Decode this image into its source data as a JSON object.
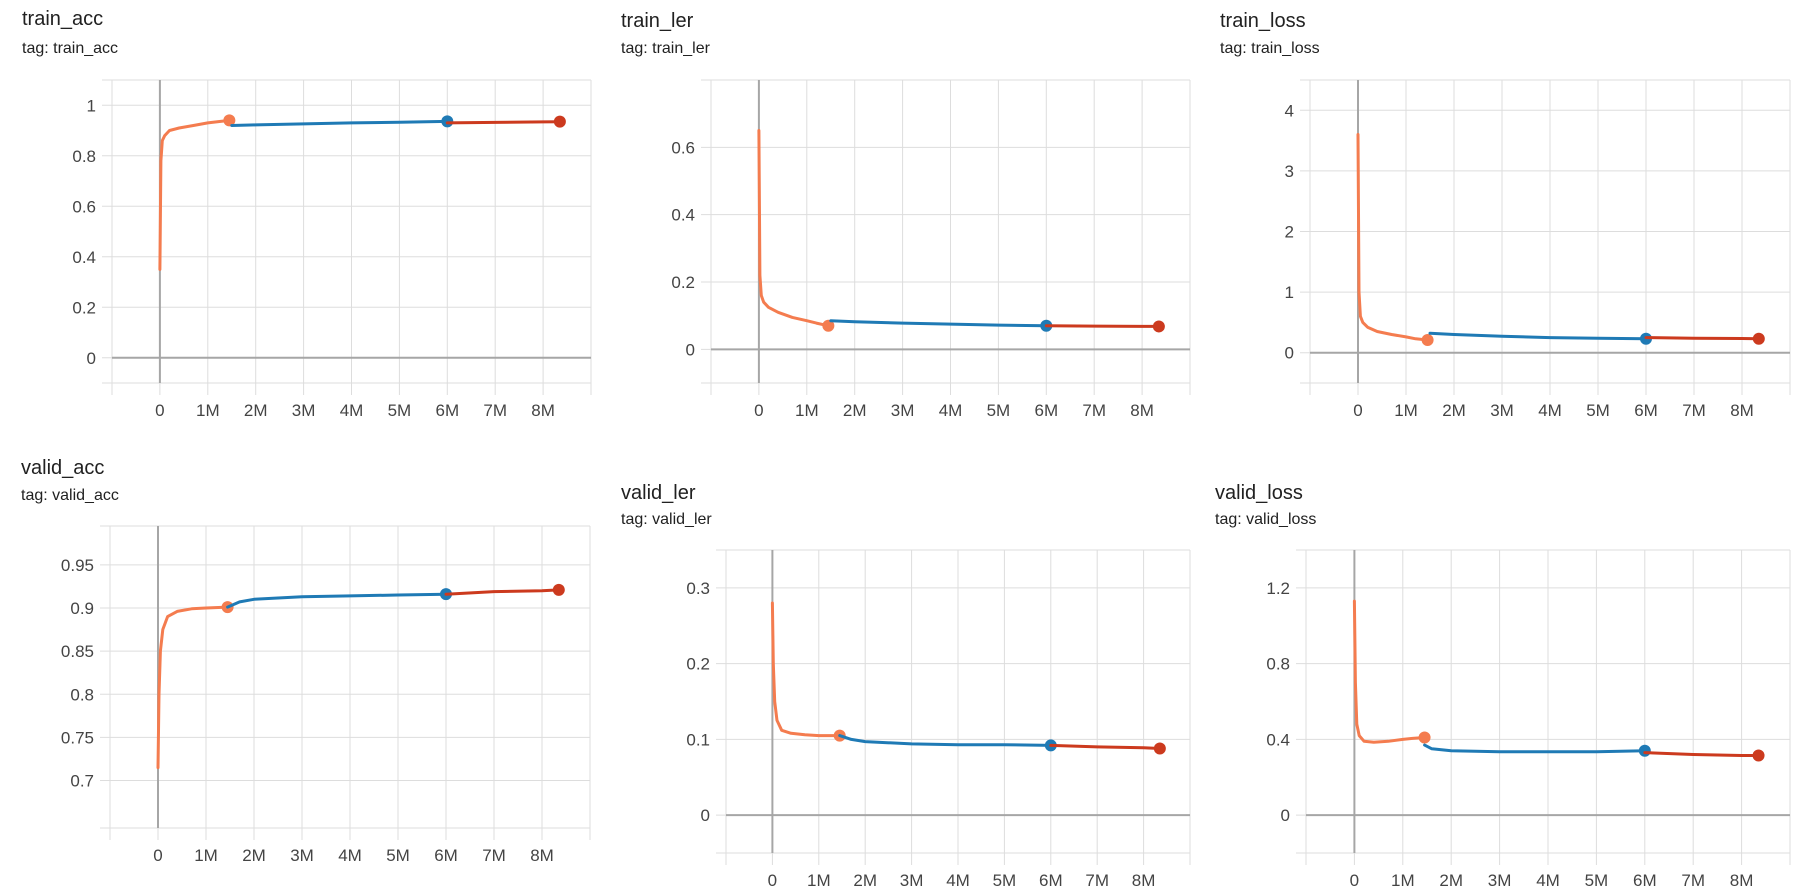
{
  "chart_data": [
    {
      "type": "line",
      "title": "train_acc",
      "tag": "tag: train_acc",
      "xlim": [
        -1000000,
        9000000
      ],
      "ylim": [
        -0.1,
        1.1
      ],
      "xticks": [
        0,
        1000000,
        2000000,
        3000000,
        4000000,
        5000000,
        6000000,
        7000000,
        8000000
      ],
      "xtick_labels": [
        "0",
        "1M",
        "2M",
        "3M",
        "4M",
        "5M",
        "6M",
        "7M",
        "8M"
      ],
      "yticks": [
        0,
        0.2,
        0.4,
        0.6,
        0.8,
        1
      ],
      "ytick_labels": [
        "0",
        "0.2",
        "0.4",
        "0.6",
        "0.8",
        "1"
      ],
      "series": [
        {
          "color": "#f47c4f",
          "x": [
            0,
            20000,
            50000,
            100000,
            200000,
            400000,
            700000,
            1000000,
            1200000,
            1450000
          ],
          "y": [
            0.35,
            0.78,
            0.86,
            0.88,
            0.9,
            0.91,
            0.92,
            0.93,
            0.935,
            0.94
          ]
        },
        {
          "color": "#1f7ab5",
          "x": [
            1500000,
            2000000,
            3000000,
            4000000,
            5000000,
            6000000
          ],
          "y": [
            0.92,
            0.922,
            0.926,
            0.93,
            0.933,
            0.936
          ]
        },
        {
          "color": "#cc3a1e",
          "x": [
            6000000,
            7000000,
            8000000,
            8350000
          ],
          "y": [
            0.93,
            0.932,
            0.934,
            0.935
          ]
        }
      ]
    },
    {
      "type": "line",
      "title": "train_ler",
      "tag": "tag: train_ler",
      "xlim": [
        -1000000,
        9000000
      ],
      "ylim": [
        -0.1,
        0.8
      ],
      "xticks": [
        0,
        1000000,
        2000000,
        3000000,
        4000000,
        5000000,
        6000000,
        7000000,
        8000000
      ],
      "xtick_labels": [
        "0",
        "1M",
        "2M",
        "3M",
        "4M",
        "5M",
        "6M",
        "7M",
        "8M"
      ],
      "yticks": [
        0,
        0.2,
        0.4,
        0.6
      ],
      "ytick_labels": [
        "0",
        "0.2",
        "0.4",
        "0.6"
      ],
      "series": [
        {
          "color": "#f47c4f",
          "x": [
            0,
            20000,
            50000,
            100000,
            200000,
            400000,
            700000,
            1000000,
            1200000,
            1450000
          ],
          "y": [
            0.65,
            0.22,
            0.16,
            0.14,
            0.125,
            0.11,
            0.095,
            0.085,
            0.078,
            0.07
          ]
        },
        {
          "color": "#1f7ab5",
          "x": [
            1500000,
            2000000,
            3000000,
            4000000,
            5000000,
            6000000
          ],
          "y": [
            0.085,
            0.082,
            0.078,
            0.075,
            0.072,
            0.07
          ]
        },
        {
          "color": "#cc3a1e",
          "x": [
            6000000,
            7000000,
            8000000,
            8350000
          ],
          "y": [
            0.07,
            0.069,
            0.068,
            0.068
          ]
        }
      ]
    },
    {
      "type": "line",
      "title": "train_loss",
      "tag": "tag: train_loss",
      "xlim": [
        -1000000,
        9000000
      ],
      "ylim": [
        -0.5,
        4.5
      ],
      "xticks": [
        0,
        1000000,
        2000000,
        3000000,
        4000000,
        5000000,
        6000000,
        7000000,
        8000000
      ],
      "xtick_labels": [
        "0",
        "1M",
        "2M",
        "3M",
        "4M",
        "5M",
        "6M",
        "7M",
        "8M"
      ],
      "yticks": [
        0,
        1,
        2,
        3,
        4
      ],
      "ytick_labels": [
        "0",
        "1",
        "2",
        "3",
        "4"
      ],
      "series": [
        {
          "color": "#f47c4f",
          "x": [
            0,
            20000,
            50000,
            100000,
            200000,
            400000,
            700000,
            1000000,
            1200000,
            1450000
          ],
          "y": [
            3.6,
            1.0,
            0.6,
            0.5,
            0.42,
            0.35,
            0.3,
            0.26,
            0.23,
            0.21
          ]
        },
        {
          "color": "#1f7ab5",
          "x": [
            1500000,
            2000000,
            3000000,
            4000000,
            5000000,
            6000000
          ],
          "y": [
            0.32,
            0.3,
            0.27,
            0.25,
            0.24,
            0.23
          ]
        },
        {
          "color": "#cc3a1e",
          "x": [
            6000000,
            7000000,
            8000000,
            8350000
          ],
          "y": [
            0.25,
            0.24,
            0.235,
            0.23
          ]
        }
      ]
    },
    {
      "type": "line",
      "title": "valid_acc",
      "tag": "tag: valid_acc",
      "xlim": [
        -1000000,
        9000000
      ],
      "ylim": [
        0.645,
        0.995
      ],
      "xticks": [
        0,
        1000000,
        2000000,
        3000000,
        4000000,
        5000000,
        6000000,
        7000000,
        8000000
      ],
      "xtick_labels": [
        "0",
        "1M",
        "2M",
        "3M",
        "4M",
        "5M",
        "6M",
        "7M",
        "8M"
      ],
      "yticks": [
        0.7,
        0.75,
        0.8,
        0.85,
        0.9,
        0.95
      ],
      "ytick_labels": [
        "0.7",
        "0.75",
        "0.8",
        "0.85",
        "0.9",
        "0.95"
      ],
      "series": [
        {
          "color": "#f47c4f",
          "x": [
            0,
            20000,
            50000,
            100000,
            200000,
            400000,
            700000,
            1000000,
            1450000
          ],
          "y": [
            0.715,
            0.8,
            0.85,
            0.875,
            0.89,
            0.896,
            0.899,
            0.9,
            0.901
          ]
        },
        {
          "color": "#1f7ab5",
          "x": [
            1450000,
            1700000,
            2000000,
            3000000,
            4000000,
            5000000,
            6000000
          ],
          "y": [
            0.901,
            0.907,
            0.91,
            0.913,
            0.914,
            0.915,
            0.916
          ]
        },
        {
          "color": "#cc3a1e",
          "x": [
            6000000,
            7000000,
            8000000,
            8350000
          ],
          "y": [
            0.916,
            0.919,
            0.92,
            0.921
          ]
        }
      ]
    },
    {
      "type": "line",
      "title": "valid_ler",
      "tag": "tag: valid_ler",
      "xlim": [
        -1000000,
        9000000
      ],
      "ylim": [
        -0.05,
        0.35
      ],
      "xticks": [
        0,
        1000000,
        2000000,
        3000000,
        4000000,
        5000000,
        6000000,
        7000000,
        8000000
      ],
      "xtick_labels": [
        "0",
        "1M",
        "2M",
        "3M",
        "4M",
        "5M",
        "6M",
        "7M",
        "8M"
      ],
      "yticks": [
        0,
        0.1,
        0.2,
        0.3
      ],
      "ytick_labels": [
        "0",
        "0.1",
        "0.2",
        "0.3"
      ],
      "series": [
        {
          "color": "#f47c4f",
          "x": [
            0,
            20000,
            50000,
            100000,
            200000,
            400000,
            700000,
            1000000,
            1450000
          ],
          "y": [
            0.28,
            0.2,
            0.15,
            0.125,
            0.112,
            0.108,
            0.106,
            0.105,
            0.105
          ]
        },
        {
          "color": "#1f7ab5",
          "x": [
            1450000,
            1700000,
            2000000,
            3000000,
            4000000,
            5000000,
            6000000
          ],
          "y": [
            0.105,
            0.1,
            0.097,
            0.094,
            0.093,
            0.093,
            0.092
          ]
        },
        {
          "color": "#cc3a1e",
          "x": [
            6000000,
            7000000,
            8000000,
            8350000
          ],
          "y": [
            0.092,
            0.09,
            0.089,
            0.088
          ]
        }
      ]
    },
    {
      "type": "line",
      "title": "valid_loss",
      "tag": "tag: valid_loss",
      "xlim": [
        -1000000,
        9000000
      ],
      "ylim": [
        -0.2,
        1.4
      ],
      "xticks": [
        0,
        1000000,
        2000000,
        3000000,
        4000000,
        5000000,
        6000000,
        7000000,
        8000000
      ],
      "xtick_labels": [
        "0",
        "1M",
        "2M",
        "3M",
        "4M",
        "5M",
        "6M",
        "7M",
        "8M"
      ],
      "yticks": [
        0,
        0.4,
        0.8,
        1.2
      ],
      "ytick_labels": [
        "0",
        "0.4",
        "0.8",
        "1.2"
      ],
      "series": [
        {
          "color": "#f47c4f",
          "x": [
            0,
            20000,
            50000,
            100000,
            200000,
            400000,
            700000,
            1000000,
            1200000,
            1450000
          ],
          "y": [
            1.13,
            0.7,
            0.48,
            0.42,
            0.39,
            0.385,
            0.39,
            0.4,
            0.405,
            0.41
          ]
        },
        {
          "color": "#1f7ab5",
          "x": [
            1450000,
            1600000,
            2000000,
            3000000,
            4000000,
            5000000,
            6000000
          ],
          "y": [
            0.37,
            0.35,
            0.34,
            0.335,
            0.335,
            0.335,
            0.34
          ]
        },
        {
          "color": "#cc3a1e",
          "x": [
            6000000,
            7000000,
            8000000,
            8350000
          ],
          "y": [
            0.33,
            0.32,
            0.315,
            0.315
          ]
        }
      ]
    }
  ]
}
